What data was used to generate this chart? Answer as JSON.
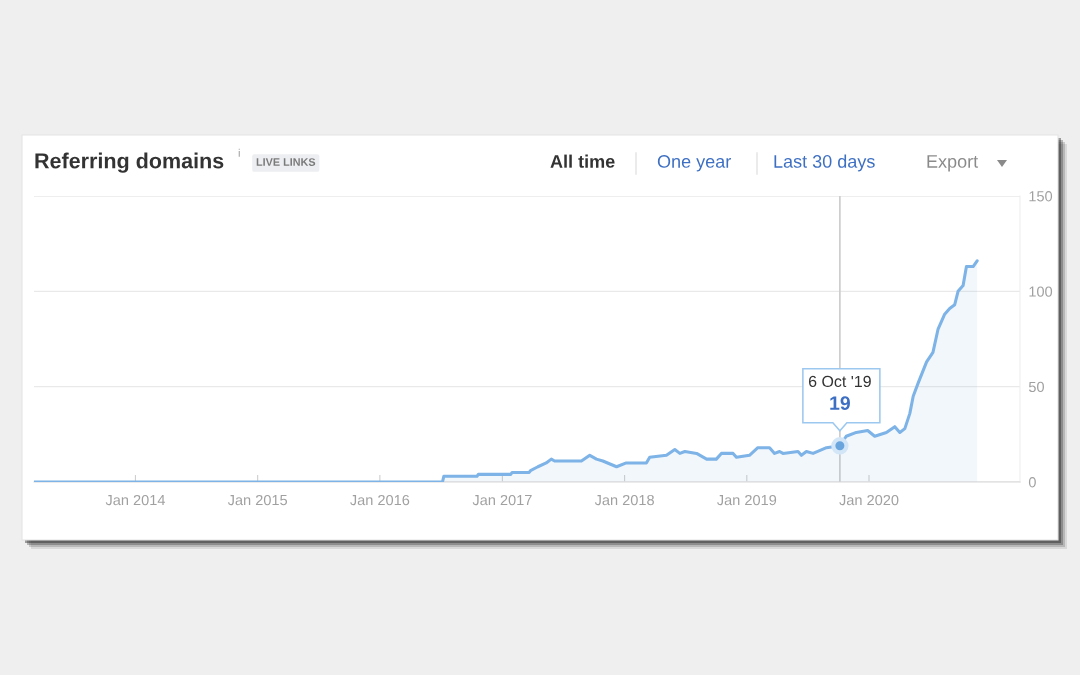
{
  "chart_data": {
    "type": "area",
    "title": "Referring domains",
    "series": [
      {
        "color": "#7db3e6",
        "x": [
          "2013-03-04",
          "2016-07-06",
          "2016-07-10",
          "2016-10-17",
          "2016-10-21",
          "2017-01-26",
          "2017-01-30",
          "2017-03-22",
          "2017-03-26",
          "2017-04-17",
          "2017-05-12",
          "2017-05-27",
          "2017-06-06",
          "2017-08-25",
          "2017-09-19",
          "2017-10-09",
          "2017-10-28",
          "2017-12-08",
          "2018-01-06",
          "2018-03-07",
          "2018-03-17",
          "2018-05-06",
          "2018-05-31",
          "2018-06-15",
          "2018-06-30",
          "2018-08-04",
          "2018-09-03",
          "2018-10-02",
          "2018-10-17",
          "2018-11-21",
          "2018-12-01",
          "2019-01-09",
          "2019-02-03",
          "2019-03-10",
          "2019-03-25",
          "2019-04-09",
          "2019-04-19",
          "2019-06-03",
          "2019-06-13",
          "2019-06-28",
          "2019-07-18",
          "2019-08-27",
          "2019-10-06",
          "2019-10-25",
          "2019-11-24",
          "2019-12-28",
          "2020-01-18",
          "2020-02-22",
          "2020-03-18",
          "2020-04-02",
          "2020-04-17",
          "2020-05-02",
          "2020-05-12",
          "2020-05-27",
          "2020-06-21",
          "2020-07-10",
          "2020-07-25",
          "2020-08-14",
          "2020-08-29",
          "2020-09-13",
          "2020-09-23",
          "2020-10-08",
          "2020-10-18",
          "2020-11-07",
          "2020-11-19"
        ],
        "values": [
          0,
          0,
          3,
          3,
          4,
          4,
          5,
          5,
          6,
          8,
          10,
          12,
          11,
          11,
          14,
          12,
          11,
          8,
          10,
          10,
          13,
          14,
          17,
          15,
          16,
          15,
          12,
          12,
          15,
          15,
          13,
          14,
          18,
          18,
          15,
          16,
          15,
          16,
          14,
          16,
          15,
          18,
          19,
          24,
          26,
          27,
          24,
          26,
          29,
          26,
          28,
          36,
          45,
          52,
          63,
          68,
          80,
          88,
          91,
          93,
          100,
          103,
          113,
          113,
          116
        ]
      },
      {
        "type": "scatter",
        "color": "#6aa5de",
        "x": [
          "2019-10-06"
        ],
        "values": [
          19
        ]
      }
    ],
    "xlim": [
      "2013-03-04",
      "2021-03-27"
    ],
    "xticks": [
      {
        "value": "2014-01-01",
        "label": "Jan 2014"
      },
      {
        "value": "2015-01-01",
        "label": "Jan 2015"
      },
      {
        "value": "2016-01-01",
        "label": "Jan 2016"
      },
      {
        "value": "2017-01-01",
        "label": "Jan 2017"
      },
      {
        "value": "2018-01-01",
        "label": "Jan 2018"
      },
      {
        "value": "2019-01-01",
        "label": "Jan 2019"
      },
      {
        "value": "2020-01-01",
        "label": "Jan 2020"
      }
    ],
    "ylim": [
      0,
      150
    ],
    "yticks": [
      0,
      50,
      100,
      150
    ],
    "grid": "y",
    "ref_lines": [
      {
        "axis": "x",
        "value": "2019-10-06",
        "color": "#cccccc"
      }
    ],
    "annotations": [
      "i",
      "LIVE LINKS",
      "All time",
      "One year",
      "Last 30 days",
      "Export",
      "6 Oct '19",
      {
        "text": "19",
        "x": "2019-10-06",
        "y": 19
      }
    ]
  }
}
